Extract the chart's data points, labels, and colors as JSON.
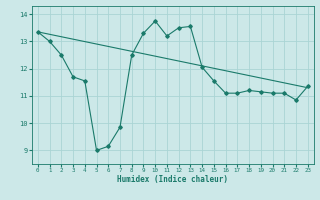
{
  "xlabel": "Humidex (Indice chaleur)",
  "ylabel": "",
  "bg_color": "#cce8e8",
  "grid_color": "#aad4d4",
  "line_color": "#1a7a6a",
  "xlim": [
    -0.5,
    23.5
  ],
  "ylim": [
    8.5,
    14.3
  ],
  "xticks": [
    0,
    1,
    2,
    3,
    4,
    5,
    6,
    7,
    8,
    9,
    10,
    11,
    12,
    13,
    14,
    15,
    16,
    17,
    18,
    19,
    20,
    21,
    22,
    23
  ],
  "yticks": [
    9,
    10,
    11,
    12,
    13,
    14
  ],
  "humidex_x": [
    0,
    1,
    2,
    3,
    4,
    5,
    6,
    7,
    8,
    9,
    10,
    11,
    12,
    13,
    14,
    15,
    16,
    17,
    18,
    19,
    20,
    21,
    22,
    23
  ],
  "humidex_y": [
    13.35,
    13.0,
    12.5,
    11.7,
    11.55,
    9.0,
    9.15,
    9.85,
    12.5,
    13.3,
    13.75,
    13.2,
    13.5,
    13.55,
    12.05,
    11.55,
    11.1,
    11.1,
    11.2,
    11.15,
    11.1,
    11.1,
    10.85,
    11.35
  ],
  "trend_x": [
    0,
    23
  ],
  "trend_y": [
    13.35,
    11.3
  ]
}
